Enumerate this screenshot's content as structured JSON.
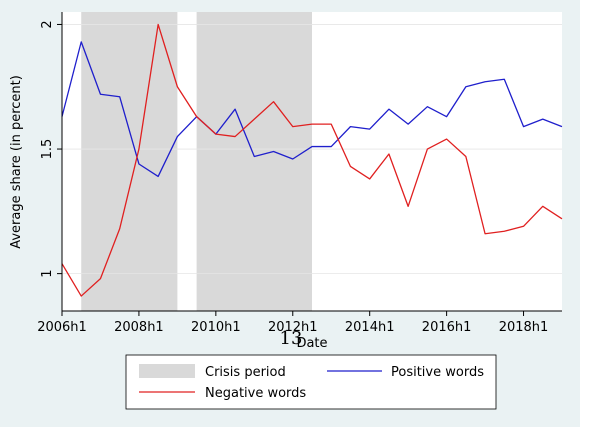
{
  "page_number": "13",
  "colors": {
    "outer_background": "#eaf2f3",
    "plot_background": "#ffffff",
    "crisis_shade": "#d9d9d9",
    "positive": "#1f1fcc",
    "negative": "#e02020"
  },
  "chart_data": {
    "type": "line",
    "title": "",
    "xlabel": "Date",
    "ylabel": "Average share (in percent)",
    "x_tick_labels": [
      "2006h1",
      "2008h1",
      "2010h1",
      "2012h1",
      "2014h1",
      "2016h1",
      "2018h1"
    ],
    "y_tick_labels": [
      "1",
      "1.5",
      "2"
    ],
    "ylim": [
      0.85,
      2.05
    ],
    "grid": true,
    "legend_position": "bottom",
    "shaded_regions": [
      {
        "name": "Crisis period",
        "start": "2006h2",
        "end": "2009h1"
      },
      {
        "name": "Crisis period",
        "start": "2009h2",
        "end": "2012h2"
      }
    ],
    "x": [
      "2006h1",
      "2006h2",
      "2007h1",
      "2007h2",
      "2008h1",
      "2008h2",
      "2009h1",
      "2009h2",
      "2010h1",
      "2010h2",
      "2011h1",
      "2011h2",
      "2012h1",
      "2012h2",
      "2013h1",
      "2013h2",
      "2014h1",
      "2014h2",
      "2015h1",
      "2015h2",
      "2016h1",
      "2016h2",
      "2017h1",
      "2017h2",
      "2018h1",
      "2018h2",
      "2019h1"
    ],
    "series": [
      {
        "name": "Positive words",
        "color": "#1f1fcc",
        "values": [
          1.63,
          1.93,
          1.72,
          1.71,
          1.44,
          1.39,
          1.55,
          1.63,
          1.56,
          1.66,
          1.47,
          1.49,
          1.46,
          1.51,
          1.51,
          1.59,
          1.58,
          1.66,
          1.6,
          1.67,
          1.63,
          1.75,
          1.77,
          1.78,
          1.59,
          1.62,
          1.59
        ]
      },
      {
        "name": "Negative words",
        "color": "#e02020",
        "values": [
          1.04,
          0.91,
          0.98,
          1.18,
          1.5,
          2.0,
          1.75,
          1.63,
          1.56,
          1.55,
          1.62,
          1.69,
          1.59,
          1.6,
          1.6,
          1.43,
          1.38,
          1.48,
          1.27,
          1.5,
          1.54,
          1.47,
          1.16,
          1.17,
          1.19,
          1.27,
          1.22
        ]
      }
    ],
    "legend": [
      {
        "label": "Crisis period",
        "kind": "shade"
      },
      {
        "label": "Positive words",
        "kind": "line",
        "series": 0
      },
      {
        "label": "Negative words",
        "kind": "line",
        "series": 1
      }
    ]
  }
}
